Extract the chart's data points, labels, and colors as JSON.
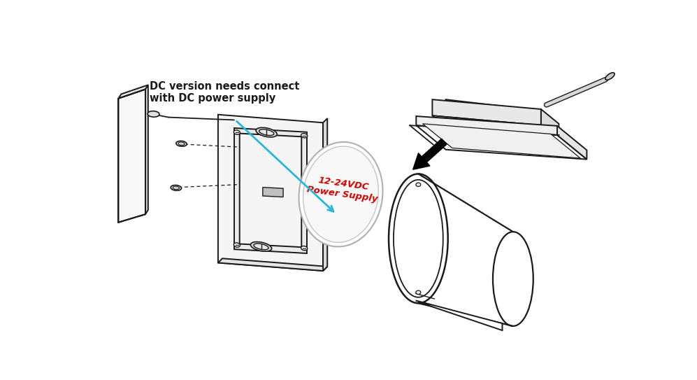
{
  "bg_color": "#ffffff",
  "line_color": "#1a1a1a",
  "label_text": "DC version needs connect\nwith DC power supply",
  "label_color": "#1a1a1a",
  "label_arrow_color": "#29b6d8",
  "power_supply_text": "12-24VDC\nPower Supply",
  "power_supply_color": "#cc0000",
  "label_fontsize": 10.5,
  "power_fontsize": 9.5,
  "lw": 1.4
}
